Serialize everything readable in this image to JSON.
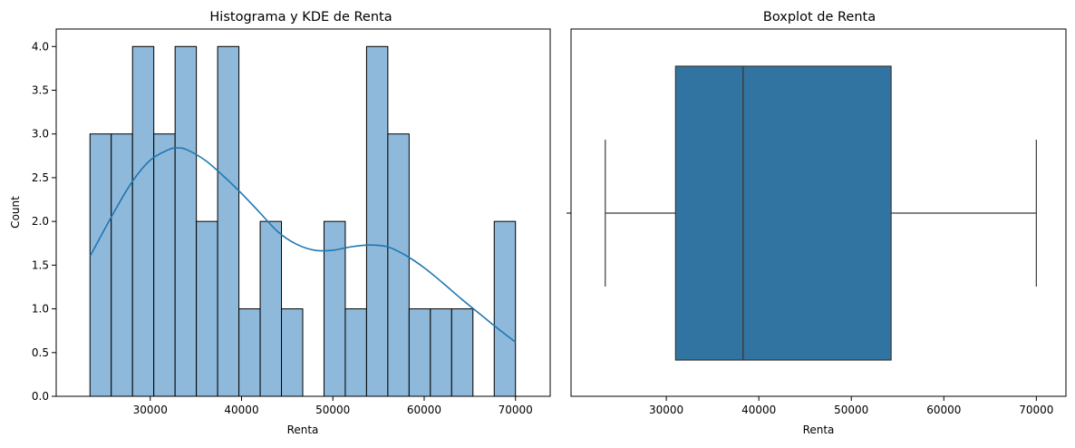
{
  "chart_data": [
    {
      "type": "bar",
      "title": "Histograma y KDE de Renta",
      "xlabel": "Renta",
      "ylabel": "Count",
      "xlim": [
        19700,
        73800
      ],
      "ylim": [
        0,
        4.2
      ],
      "x_ticks": [
        30000,
        40000,
        50000,
        60000,
        70000
      ],
      "y_ticks": [
        "0.0",
        "0.5",
        "1.0",
        "1.5",
        "2.0",
        "2.5",
        "3.0",
        "3.5",
        "4.0"
      ],
      "bin_edges": [
        23400,
        25730,
        28060,
        30390,
        32720,
        35050,
        37380,
        39710,
        42040,
        44370,
        46700,
        49030,
        51360,
        53690,
        56020,
        58350,
        60680,
        63010,
        65340,
        67670,
        70000
      ],
      "counts": [
        3,
        3,
        4,
        3,
        4,
        2,
        4,
        1,
        2,
        1,
        0,
        2,
        1,
        4,
        3,
        1,
        1,
        1,
        0,
        2
      ],
      "kde": {
        "x": [
          23400,
          26000,
          28000,
          30000,
          32000,
          33000,
          34000,
          36000,
          38000,
          40000,
          42000,
          44000,
          46000,
          48000,
          50000,
          52000,
          54000,
          56000,
          58000,
          60000,
          62000,
          64000,
          66000,
          68000,
          70000
        ],
        "y": [
          1.6,
          2.1,
          2.45,
          2.7,
          2.82,
          2.84,
          2.82,
          2.7,
          2.52,
          2.32,
          2.1,
          1.88,
          1.74,
          1.67,
          1.67,
          1.71,
          1.73,
          1.71,
          1.61,
          1.47,
          1.3,
          1.12,
          0.95,
          0.78,
          0.62
        ]
      },
      "grid": false,
      "colors": {
        "bar_fill": "#8fb9da",
        "bar_edge": "#000000",
        "kde_line": "#1f77b4"
      }
    },
    {
      "type": "box",
      "title": "Boxplot de Renta",
      "xlabel": "Renta",
      "xlim": [
        19700,
        73200
      ],
      "x_ticks": [
        30000,
        40000,
        50000,
        60000,
        70000
      ],
      "stats": {
        "min": 23400,
        "q1": 31000,
        "median": 38300,
        "q3": 54300,
        "max": 70000
      },
      "grid": false,
      "colors": {
        "box_fill": "#3274a1",
        "line": "#3a3a3a"
      }
    }
  ]
}
